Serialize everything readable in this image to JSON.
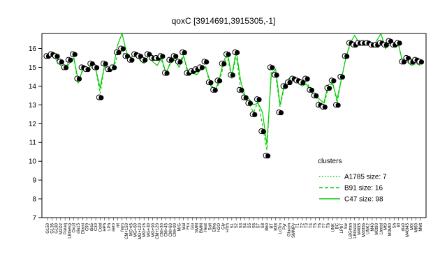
{
  "chart_data": {
    "type": "line",
    "title": "qoxC [3914691,3915305,-1]",
    "xlabel": "",
    "ylabel": "",
    "ylim": [
      7,
      16.8
    ],
    "yticks": [
      7,
      8,
      9,
      10,
      11,
      12,
      13,
      14,
      15,
      16
    ],
    "grid": false,
    "legend_title": "clusters",
    "legend_position": "right",
    "colors": {
      "points": "#000000",
      "lines": "#00cc00"
    },
    "x_labels": [
      "G150",
      "G135",
      "G180",
      "M2D2",
      "Paraq",
      "LBGexp",
      "Oxctl",
      "dia15",
      "Diami",
      "C90",
      "dia5",
      "C30",
      "Cold",
      "HPh",
      "LPh",
      "aero",
      "nit",
      "ferm",
      "CM+150",
      "MG+t5",
      "MG+60",
      "MG+120",
      "MG+15",
      "MG+30",
      "MG+90",
      "CM+120",
      "CM+30",
      "CM+45",
      "CM+60",
      "CM+90",
      "M/G",
      "Mal",
      "Fru",
      "Glu",
      "SMM",
      "BMM",
      "Heat",
      "Salt",
      "Etha",
      "H2O",
      "Gly",
      "HTm",
      "S1",
      "S2",
      "S3",
      "S4",
      "S5",
      "S6",
      "S7",
      "S8",
      "B60",
      "BT",
      "B38",
      "LoTm",
      "Pyr",
      "Glucon",
      "SMMPy",
      "T1",
      "T2",
      "T3",
      "T4",
      "T5",
      "T6",
      "T7",
      "T8",
      "UNK",
      "BC",
      "LPhT",
      "Sw",
      "LBGtran",
      "LBGstat",
      "M40t5",
      "M40t5b",
      "UNK2",
      "M40",
      "M0t90",
      "Lbstat",
      "Mt0",
      "M0Mt0",
      "Sh",
      "BI",
      "dia0",
      "M40t45",
      "M0t",
      "Mt60",
      "MMt"
    ],
    "x_label_shown": [
      "G150",
      "G135",
      "G180",
      "M2D2",
      "Paraq",
      "LBGexp",
      "Oxctl",
      "dia15",
      "Diami",
      "C90",
      "dia5",
      "C30",
      "Cold",
      "HPh",
      "LPh",
      "aero",
      "nit",
      "ferm",
      "CM+150",
      "MG+t5",
      "MG+60",
      "MG+120",
      "MG+15",
      "MG+30",
      "MG+90",
      "CM+120",
      "CM+30",
      "CM+45",
      "CM+60",
      "CM+90",
      "M/G",
      "Mal",
      "Fru",
      "Glu",
      "SMM",
      "BMM",
      "Heat",
      "Salt",
      "Etha",
      "H2O",
      "Gly",
      "HTm",
      "S1",
      "S2",
      "S3",
      "S4",
      "S5",
      "S6",
      "S7",
      "S8",
      "B60",
      "BT",
      "B38",
      "LoTm",
      "Pyr",
      "Glucon",
      "SMMPy",
      "T1",
      "T2",
      "T3",
      "T4",
      "T5",
      "T6",
      "T7",
      "T8",
      "UNK",
      "BC",
      "LPhT",
      "Sw",
      "LBGtran",
      "LBGstat",
      "M40t5",
      "M40t5b",
      "UNK2",
      "M40",
      "M0t90",
      "Lbstat",
      "Mt0",
      "M0Mt0",
      "Sh",
      "BI",
      "dia0",
      "M40t45",
      "M0t",
      "Mt60",
      "MMt"
    ],
    "series_points": [
      15.6,
      15.7,
      15.6,
      15.3,
      15.0,
      15.4,
      15.7,
      14.4,
      15.0,
      14.9,
      15.2,
      15.0,
      13.4,
      15.2,
      14.9,
      15.0,
      15.8,
      16.0,
      15.6,
      15.4,
      15.7,
      15.6,
      15.4,
      15.7,
      15.5,
      15.5,
      15.6,
      14.7,
      15.4,
      15.6,
      15.3,
      15.8,
      14.7,
      14.8,
      14.9,
      15.0,
      15.3,
      14.2,
      13.8,
      14.3,
      15.2,
      15.7,
      14.6,
      15.8,
      13.8,
      13.4,
      13.1,
      12.5,
      13.3,
      11.6,
      10.3,
      15.0,
      14.6,
      12.6,
      14.0,
      14.2,
      14.4,
      14.3,
      14.2,
      14.4,
      13.8,
      13.5,
      13.0,
      12.9,
      13.9,
      14.3,
      13.0,
      14.5,
      15.6,
      16.3,
      16.2,
      16.3,
      16.3,
      16.3,
      16.2,
      16.2,
      16.3,
      16.2,
      16.4,
      16.2,
      16.3,
      15.3,
      15.5,
      15.3,
      15.4,
      15.3
    ],
    "series": [
      {
        "name": "A1785 size: 7",
        "style": "dotted"
      },
      {
        "name": "B91 size: 16",
        "style": "dashed"
      },
      {
        "name": "C47 size: 98",
        "style": "solid"
      }
    ],
    "c47_line": [
      15.6,
      15.8,
      15.6,
      15.1,
      14.9,
      15.2,
      15.5,
      14.3,
      14.8,
      14.9,
      15.1,
      14.9,
      13.9,
      15.1,
      14.8,
      15.0,
      16.2,
      16.8,
      15.8,
      15.5,
      15.8,
      15.4,
      15.2,
      15.6,
      15.3,
      15.1,
      15.5,
      14.7,
      15.2,
      15.4,
      15.0,
      15.6,
      14.8,
      14.7,
      14.6,
      14.9,
      15.0,
      14.3,
      13.7,
      14.2,
      15.2,
      15.8,
      14.5,
      15.9,
      14.3,
      13.5,
      13.3,
      13.0,
      13.1,
      12.6,
      10.9,
      14.6,
      14.9,
      13.0,
      14.1,
      14.4,
      14.3,
      14.2,
      14.0,
      14.1,
      13.7,
      13.5,
      13.3,
      13.1,
      14.1,
      14.1,
      13.3,
      14.4,
      15.5,
      16.3,
      16.7,
      16.3,
      16.2,
      16.3,
      16.1,
      16.4,
      16.8,
      16.0,
      16.2,
      16.1,
      16.2,
      15.2,
      15.3,
      15.1,
      15.2,
      15.1
    ],
    "b91_line": [
      15.5,
      15.6,
      15.4,
      15.1,
      15.0,
      15.3,
      15.5,
      14.1,
      14.9,
      14.8,
      15.0,
      14.9,
      13.6,
      15.1,
      14.9,
      14.9,
      15.7,
      15.9,
      15.5,
      15.4,
      15.6,
      15.5,
      15.3,
      15.6,
      15.4,
      15.4,
      15.4,
      14.6,
      15.3,
      15.4,
      15.2,
      15.7,
      14.6,
      14.7,
      14.7,
      14.9,
      15.1,
      14.1,
      13.7,
      14.1,
      15.0,
      15.6,
      14.4,
      15.7,
      13.9,
      13.4,
      13.0,
      12.6,
      13.2,
      11.9,
      10.6,
      14.8,
      14.6,
      12.9,
      14.0,
      14.2,
      14.3,
      14.2,
      14.1,
      14.3,
      13.7,
      13.5,
      13.1,
      13.0,
      13.9,
      14.2,
      13.1,
      14.4,
      15.5,
      16.2,
      16.2,
      16.2,
      16.2,
      16.2,
      16.1,
      16.2,
      16.3,
      16.1,
      16.2,
      16.1,
      16.2,
      15.2,
      15.4,
      15.2,
      15.3,
      15.2
    ]
  }
}
